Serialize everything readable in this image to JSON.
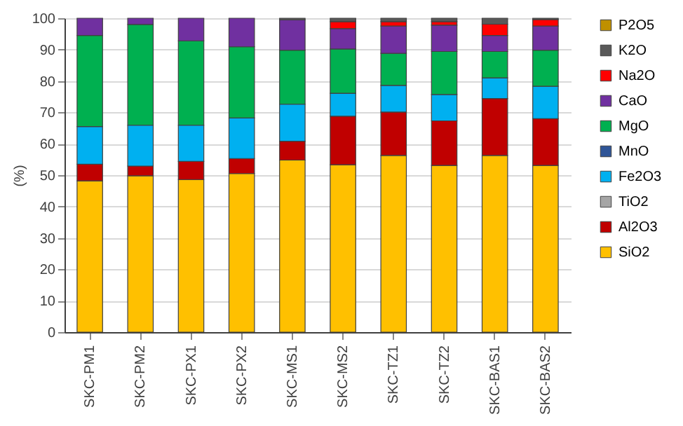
{
  "chart_data": {
    "type": "bar",
    "stacked": true,
    "ylabel": "(%)",
    "categories": [
      "SKC-PM1",
      "SKC-PM2",
      "SKC-PX1",
      "SKC-PX2",
      "SKC-MS1",
      "SKC-MS2",
      "SKC-TZ1",
      "SKC-TZ2",
      "SKC-BAS1",
      "SKC-BAS2"
    ],
    "ylim": [
      0,
      100
    ],
    "yticks": [
      0,
      10,
      20,
      30,
      40,
      50,
      60,
      70,
      80,
      90,
      100
    ],
    "grid": "y",
    "legend": "right",
    "series": [
      {
        "name": "SiO2",
        "color": "#ffc000",
        "values": [
          48.2,
          49.8,
          48.6,
          50.5,
          54.8,
          53.3,
          56.3,
          53.1,
          56.3,
          53.1
        ]
      },
      {
        "name": "Al2O3",
        "color": "#c00000",
        "values": [
          5.3,
          3.1,
          5.8,
          4.8,
          6.0,
          15.5,
          13.8,
          14.2,
          18.1,
          14.9
        ]
      },
      {
        "name": "TiO2",
        "color": "#a5a5a5",
        "values": [
          null,
          null,
          null,
          null,
          null,
          null,
          null,
          null,
          null,
          null
        ]
      },
      {
        "name": "Fe2O3",
        "color": "#00b0f0",
        "values": [
          12.0,
          13.0,
          11.5,
          12.9,
          11.8,
          7.3,
          8.5,
          8.4,
          6.6,
          10.3
        ]
      },
      {
        "name": "MnO",
        "color": "#2f5597",
        "values": [
          null,
          null,
          null,
          null,
          null,
          null,
          null,
          null,
          null,
          null
        ]
      },
      {
        "name": "MgO",
        "color": "#00b050",
        "values": [
          29.0,
          32.1,
          26.9,
          22.7,
          17.2,
          14.1,
          10.2,
          13.7,
          8.4,
          11.5
        ]
      },
      {
        "name": "CaO",
        "color": "#7030a0",
        "values": [
          5.5,
          2.0,
          7.2,
          9.1,
          9.7,
          6.5,
          8.7,
          8.4,
          5.1,
          7.7
        ]
      },
      {
        "name": "Na2O",
        "color": "#ff0000",
        "values": [
          null,
          null,
          null,
          null,
          null,
          2.2,
          1.4,
          1.1,
          3.6,
          2.1
        ]
      },
      {
        "name": "K2O",
        "color": "#595959",
        "values": [
          null,
          null,
          null,
          null,
          0.5,
          1.1,
          1.1,
          1.1,
          1.9,
          0.4
        ]
      },
      {
        "name": "P2O5",
        "color": "#bf9000",
        "values": [
          null,
          null,
          null,
          null,
          null,
          null,
          null,
          null,
          null,
          null
        ]
      }
    ]
  }
}
